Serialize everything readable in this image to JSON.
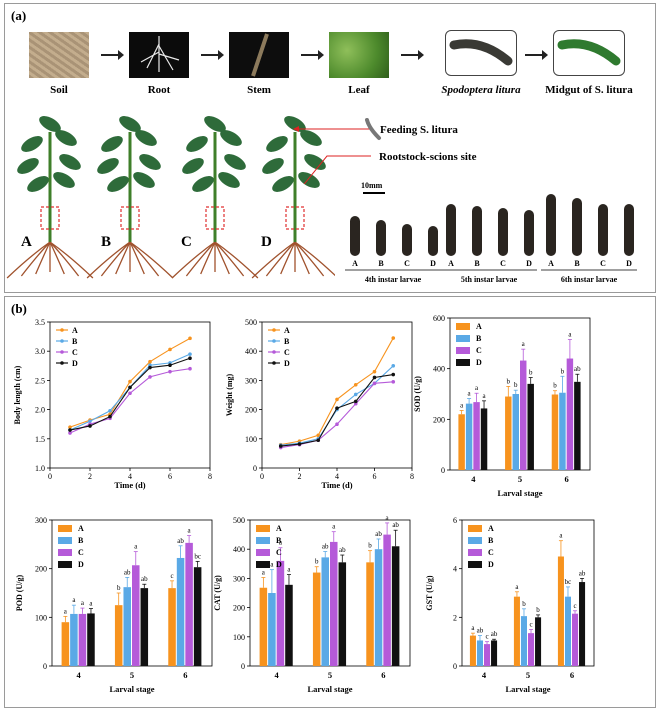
{
  "panel_a": {
    "label": "(a)",
    "flow": [
      {
        "label": "Soil",
        "italic": false
      },
      {
        "label": "Root",
        "italic": false
      },
      {
        "label": "Stem",
        "italic": false
      },
      {
        "label": "Leaf",
        "italic": false
      },
      {
        "label": "Spodoptera litura",
        "italic": true
      },
      {
        "label": "Midgut of S. litura",
        "italic": false
      }
    ],
    "plants": [
      "A",
      "B",
      "C",
      "D"
    ],
    "annotations": {
      "feeding": "Feeding S. litura",
      "site": "Rootstock-scions site"
    },
    "scale_bar": "10mm",
    "larvae_letters": [
      "A",
      "B",
      "C",
      "D"
    ],
    "instars": [
      "4th instar larvae",
      "5th instar larvae",
      "6th instar larvae"
    ]
  },
  "panel_b": {
    "label": "(b)"
  },
  "legend": [
    "A",
    "B",
    "C",
    "D"
  ],
  "colors": {
    "A": "#f7931e",
    "B": "#5aa9e6",
    "C": "#b55ad9",
    "D": "#111111"
  },
  "chart_data": [
    {
      "type": "line",
      "ylabel": "Body length (cm)",
      "xlabel": "Time (d)",
      "ylim": [
        1.0,
        3.5
      ],
      "yticks": [
        1.0,
        1.5,
        2.0,
        2.5,
        3.0,
        3.5
      ],
      "xlim": [
        0,
        8
      ],
      "xticks": [
        0,
        2,
        4,
        6,
        8
      ],
      "x": [
        1,
        2,
        3,
        4,
        5,
        6,
        7
      ],
      "series": [
        {
          "name": "A",
          "values": [
            1.7,
            1.82,
            1.92,
            2.48,
            2.82,
            3.03,
            3.22
          ]
        },
        {
          "name": "B",
          "values": [
            1.65,
            1.8,
            1.98,
            2.38,
            2.76,
            2.8,
            2.95
          ]
        },
        {
          "name": "C",
          "values": [
            1.6,
            1.75,
            1.85,
            2.28,
            2.56,
            2.65,
            2.7
          ]
        },
        {
          "name": "D",
          "values": [
            1.65,
            1.72,
            1.88,
            2.38,
            2.72,
            2.76,
            2.88
          ]
        }
      ]
    },
    {
      "type": "line",
      "ylabel": "Weight (mg)",
      "xlabel": "Time (d)",
      "ylim": [
        0,
        500
      ],
      "yticks": [
        0,
        100,
        200,
        300,
        400,
        500
      ],
      "xlim": [
        0,
        8
      ],
      "xticks": [
        0,
        2,
        4,
        6,
        8
      ],
      "x": [
        1,
        2,
        3,
        4,
        5,
        6,
        7
      ],
      "series": [
        {
          "name": "A",
          "values": [
            80,
            92,
            112,
            235,
            285,
            330,
            445
          ]
        },
        {
          "name": "B",
          "values": [
            78,
            85,
            100,
            200,
            252,
            290,
            350
          ]
        },
        {
          "name": "C",
          "values": [
            70,
            80,
            95,
            150,
            220,
            290,
            295
          ]
        },
        {
          "name": "D",
          "values": [
            75,
            82,
            95,
            205,
            228,
            310,
            320
          ]
        }
      ]
    },
    {
      "type": "bar",
      "ylabel": "SOD (U/g)",
      "xlabel": "Larval stage",
      "ylim": [
        0,
        600
      ],
      "yticks": [
        0,
        200,
        400,
        600
      ],
      "categories": [
        "4",
        "5",
        "6"
      ],
      "series": [
        {
          "name": "A",
          "values": [
            220,
            290,
            298
          ],
          "errors": [
            15,
            40,
            15
          ],
          "letters": [
            "a",
            "b",
            "b"
          ]
        },
        {
          "name": "B",
          "values": [
            262,
            300,
            305
          ],
          "errors": [
            20,
            15,
            65
          ],
          "letters": [
            "a",
            "b",
            "b"
          ]
        },
        {
          "name": "C",
          "values": [
            268,
            432,
            440
          ],
          "errors": [
            35,
            45,
            75
          ],
          "letters": [
            "a",
            "a",
            "a"
          ]
        },
        {
          "name": "D",
          "values": [
            243,
            340,
            348
          ],
          "errors": [
            30,
            25,
            30
          ],
          "letters": [
            "a",
            "b",
            "ab"
          ]
        }
      ]
    },
    {
      "type": "bar",
      "ylabel": "POD (U/g)",
      "xlabel": "Larval stage",
      "ylim": [
        0,
        300
      ],
      "yticks": [
        0,
        100,
        200,
        300
      ],
      "categories": [
        "4",
        "5",
        "6"
      ],
      "series": [
        {
          "name": "A",
          "values": [
            90,
            125,
            160
          ],
          "errors": [
            12,
            25,
            15
          ],
          "letters": [
            "a",
            "b",
            "c"
          ]
        },
        {
          "name": "B",
          "values": [
            107,
            162,
            222
          ],
          "errors": [
            18,
            20,
            25
          ],
          "letters": [
            "a",
            "ab",
            "ab"
          ]
        },
        {
          "name": "C",
          "values": [
            107,
            207,
            253
          ],
          "errors": [
            12,
            28,
            15
          ],
          "letters": [
            "a",
            "a",
            "a"
          ]
        },
        {
          "name": "D",
          "values": [
            108,
            160,
            203
          ],
          "errors": [
            10,
            8,
            12
          ],
          "letters": [
            "a",
            "ab",
            "bc"
          ]
        }
      ]
    },
    {
      "type": "bar",
      "ylabel": "CAT (U/g)",
      "xlabel": "Larval stage",
      "ylim": [
        0,
        500
      ],
      "yticks": [
        0,
        100,
        200,
        300,
        400,
        500
      ],
      "categories": [
        "4",
        "5",
        "6"
      ],
      "series": [
        {
          "name": "A",
          "values": [
            268,
            320,
            355
          ],
          "errors": [
            35,
            20,
            40
          ],
          "letters": [
            "a",
            "b",
            "b"
          ]
        },
        {
          "name": "B",
          "values": [
            250,
            372,
            400
          ],
          "errors": [
            80,
            20,
            35
          ],
          "letters": [
            "a",
            "ab",
            "ab"
          ]
        },
        {
          "name": "C",
          "values": [
            360,
            425,
            450
          ],
          "errors": [
            45,
            35,
            40
          ],
          "letters": [
            "a",
            "a",
            "a"
          ]
        },
        {
          "name": "D",
          "values": [
            278,
            355,
            410
          ],
          "errors": [
            35,
            25,
            55
          ],
          "letters": [
            "a",
            "ab",
            "ab"
          ]
        }
      ]
    },
    {
      "type": "bar",
      "ylabel": "GST (U/g)",
      "xlabel": "Larval stage",
      "ylim": [
        0,
        6
      ],
      "yticks": [
        0,
        2,
        4,
        6
      ],
      "categories": [
        "4",
        "5",
        "6"
      ],
      "series": [
        {
          "name": "A",
          "values": [
            1.25,
            2.85,
            4.5
          ],
          "errors": [
            0.1,
            0.2,
            0.65
          ],
          "letters": [
            "a",
            "a",
            "a"
          ]
        },
        {
          "name": "B",
          "values": [
            1.05,
            2.05,
            2.85
          ],
          "errors": [
            0.2,
            0.3,
            0.4
          ],
          "letters": [
            "ab",
            "b",
            "bc"
          ]
        },
        {
          "name": "C",
          "values": [
            0.9,
            1.35,
            2.15
          ],
          "errors": [
            0.1,
            0.15,
            0.12
          ],
          "letters": [
            "c",
            "c",
            "c"
          ]
        },
        {
          "name": "D",
          "values": [
            1.05,
            2.0,
            3.45
          ],
          "errors": [
            0.05,
            0.1,
            0.15
          ],
          "letters": [
            "ab",
            "b",
            "ab"
          ]
        }
      ]
    }
  ]
}
